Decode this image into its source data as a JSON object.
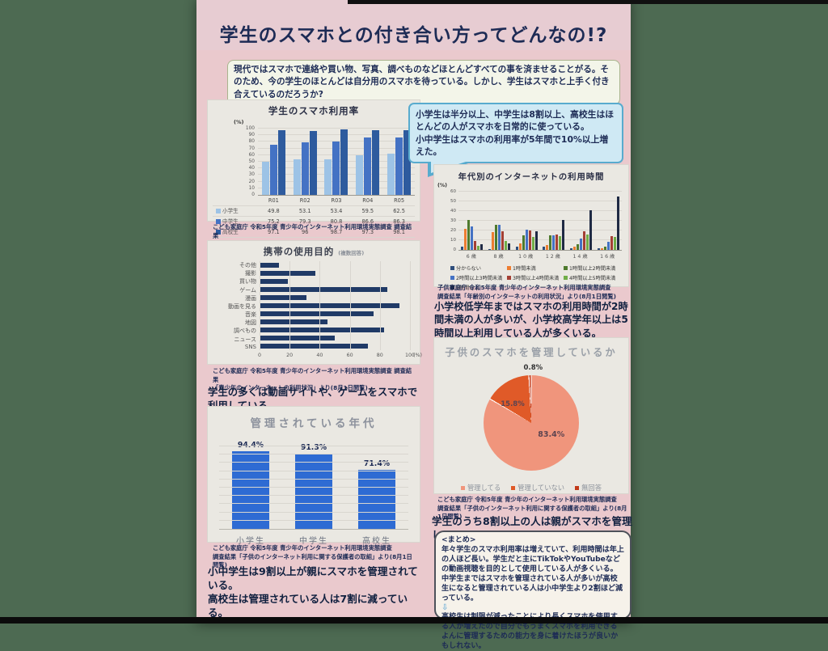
{
  "page": {
    "background": "#4d6a52",
    "poster_bg": "#eac9cd"
  },
  "poster": {
    "title": "学生のスマホとの付き合い方ってどんなの!?",
    "intro": "現代ではスマホで連絡や買い物、写真、調べものなどほとんどすべての事を済ませることがる。そのため、今の学生のほとんどは自分用のスマホを待っている。しかし、学生はスマホと上手く付き合えているのだろうか?"
  },
  "callout": {
    "line1": "小学生は半分以上、中学生は8割以上、高校生はほとんどの人がスマホを日常的に使っている。",
    "line2": "小中学生はスマホの利用率が5年間で10%以上増えた。"
  },
  "statements": {
    "purpose_summary": "学生の多くは動画サイトや、ゲームをスマホで利用している。",
    "time_summary": "小学校低学年まではスマホの利用時間が2時間未満の人が多いが、小学校高学年以上は5時間以上利用している人が多くいる。",
    "managed_line1": "小中学生は9割以上が親にスマホを管理されている。",
    "managed_line2": "高校生は管理されている人は7割に減っている。",
    "pie_summary": "学生のうち8割以上の人は親がスマホを管理している。"
  },
  "sources": {
    "usage_l1": "こども家庭庁 令和5年度 青少年のインターネット利用環境実態調査 調査結果",
    "usage_l2": "「青少年のインターネット利用率の経年比較」より(8月1日閲覧)",
    "time_l1": "子供家庭庁 令和5年度 青少年のインターネット利用環境実態調査",
    "time_l2": "調査結果「年齢別のインターネットの利用状況」より(8月1日閲覧)",
    "purpose_l1": "こども家庭庁 令和5年度 青少年のインターネット利用環境実態調査 調査結果",
    "purpose_l2": "「青少年のインターネットの利用状況」より(8月1日閲覧)",
    "managed_l1": "こども家庭庁 令和5年度 青少年のインターネット利用環境実態調査",
    "managed_l2": "調査結果「子供のインターネット利用に関する保護者の取組」より(8月1日閲覧)",
    "pie_l1": "こども家庭庁 令和5年度 青少年のインターネット利用環境実態調査",
    "pie_l2": "調査結果「子供のインターネット利用に関する保護者の取組」より(8月1日閲覧)"
  },
  "summary": {
    "heading": "<まとめ>",
    "para1": "年々学生のスマホ利用率は増えていて、利用時間は年上の人ほど長い。学生だと主にTikTokやYouTubeなどの動画視聴を目的として使用している人が多くいる。中学生まではスマホを管理されている人が多いが高校生になると管理されている人は小中学生より2割ほど減っている。",
    "arrow": "⇩",
    "para2": "高校生は制限が減ったことにより長くスマホを使用する人が増えたので自分でもうまくスマホを利用できるよんに管理するための能力を身に着けたほうが良いかもしれない。"
  },
  "chart_data": [
    {
      "id": "usage_rate",
      "type": "bar",
      "title": "学生のスマホ利用率",
      "unit": "(%)",
      "ylim": [
        0,
        100
      ],
      "ytick_step": 10,
      "categories": [
        "R01",
        "R02",
        "R03",
        "R04",
        "R05"
      ],
      "series": [
        {
          "name": "小学生",
          "color": "#9dc3e6",
          "values": [
            49.8,
            53.1,
            53.4,
            59.5,
            62.5
          ]
        },
        {
          "name": "中学生",
          "color": "#4472c4",
          "values": [
            75.2,
            79.3,
            80.8,
            86.6,
            86.3
          ]
        },
        {
          "name": "高校生",
          "color": "#2e5b9e",
          "values": [
            97.1,
            96,
            98.7,
            97.3,
            98.1
          ]
        }
      ],
      "legend_position": "table-left",
      "grid": true
    },
    {
      "id": "time_by_age",
      "type": "bar",
      "title": "年代別のインターネットの利用時間",
      "unit": "(%)",
      "ylim": [
        0,
        60
      ],
      "ytick_step": 10,
      "categories": [
        "6歳",
        "8歳",
        "10歳",
        "12歳",
        "14歳",
        "16歳"
      ],
      "series": [
        {
          "name": "分からない",
          "color": "#2e4d7b",
          "values": [
            3,
            1,
            3,
            3,
            2,
            2
          ]
        },
        {
          "name": "1時間未満",
          "color": "#ed7d31",
          "values": [
            22,
            18,
            7,
            5,
            3,
            2
          ]
        },
        {
          "name": "1時間以上2時間未満",
          "color": "#4e7a2d",
          "values": [
            31,
            26,
            15,
            15,
            6,
            3
          ]
        },
        {
          "name": "2時間以上3時間未満",
          "color": "#4472c4",
          "values": [
            24,
            26,
            21,
            15,
            12,
            8
          ]
        },
        {
          "name": "3時間以上4時間未満",
          "color": "#a43f34",
          "values": [
            9,
            19,
            20,
            16,
            19,
            14
          ]
        },
        {
          "name": "4時間以上5時間未満",
          "color": "#70ad47",
          "values": [
            4,
            9,
            13,
            14,
            16,
            13
          ]
        },
        {
          "name": "5時間以上",
          "color": "#1f2a44",
          "values": [
            6,
            7,
            19,
            31,
            41,
            55
          ]
        }
      ],
      "legend_position": "bottom",
      "grid": true
    },
    {
      "id": "purpose",
      "type": "bar",
      "orientation": "horizontal",
      "title": "携帯の使用目的",
      "subtitle": "(複数回答)",
      "unit": "(%)",
      "xlim": [
        0,
        100
      ],
      "xtick_step": 20,
      "categories": [
        "その他",
        "撮影",
        "買い物",
        "ゲーム",
        "漫画",
        "動画を見る",
        "音楽",
        "地図",
        "調べもの",
        "ニュース",
        "SNS"
      ],
      "values": [
        13,
        37,
        19,
        85,
        31,
        93,
        76,
        45,
        83,
        50,
        72
      ],
      "color": "#203a66",
      "grid": true
    },
    {
      "id": "managed_age",
      "type": "bar",
      "title": "管理されている年代",
      "ylim": [
        0,
        100
      ],
      "categories": [
        "小学生",
        "中学生",
        "高校生"
      ],
      "values": [
        94.4,
        91.3,
        71.4
      ],
      "labels": [
        "94.4%",
        "91.3%",
        "71.4%"
      ],
      "color": "#2e6bd3",
      "grid": true
    },
    {
      "id": "managed_pie",
      "type": "pie",
      "title": "子供のスマホを管理しているか",
      "slices": [
        {
          "label": "管理してる",
          "value": 83.4,
          "display": "83.4%",
          "color": "#f0957c"
        },
        {
          "label": "管理していない",
          "value": 15.8,
          "display": "15.8%",
          "color": "#e05a28"
        },
        {
          "label": "無回答",
          "value": 0.8,
          "display": "0.8%",
          "color": "#c23a1a"
        }
      ],
      "legend_position": "bottom"
    }
  ]
}
